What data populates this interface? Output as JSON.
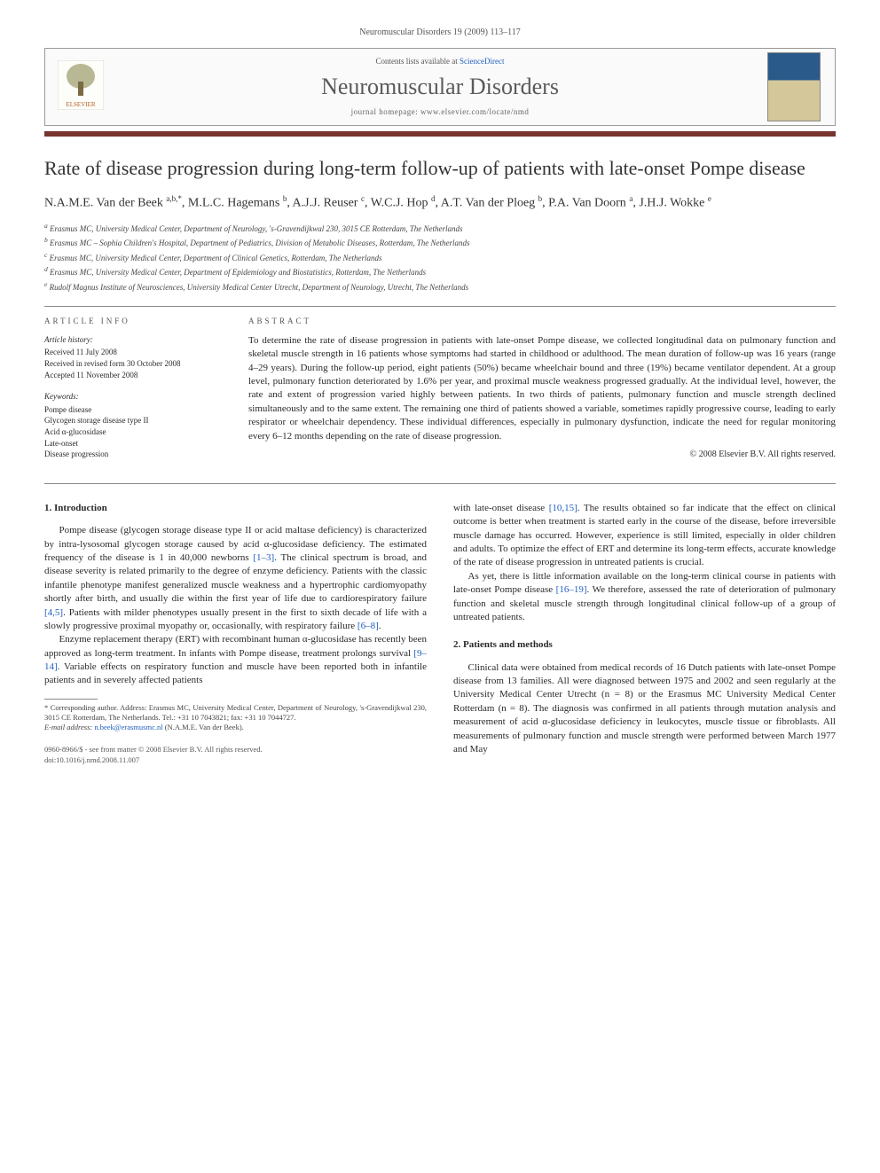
{
  "header_meta": "Neuromuscular Disorders 19 (2009) 113–117",
  "pubinfo": {
    "contents_prefix": "Contents lists available at ",
    "contents_link": "ScienceDirect",
    "journal_name": "Neuromuscular Disorders",
    "homepage_prefix": "journal homepage: ",
    "homepage_url": "www.elsevier.com/locate/nmd",
    "elsevier_label": "ELSEVIER"
  },
  "colors": {
    "title_bar": "#77352e",
    "link": "#2060c0",
    "cover_top": "#2a5a8a",
    "cover_bottom": "#d4c89a"
  },
  "article": {
    "title": "Rate of disease progression during long-term follow-up of patients with late-onset Pompe disease",
    "authors_html": "N.A.M.E. Van der Beek <sup>a,b,*</sup>, M.L.C. Hagemans <sup>b</sup>, A.J.J. Reuser <sup>c</sup>, W.C.J. Hop <sup>d</sup>, A.T. Van der Ploeg <sup>b</sup>, P.A. Van Doorn <sup>a</sup>, J.H.J. Wokke <sup>e</sup>",
    "affiliations": [
      "a Erasmus MC, University Medical Center, Department of Neurology, 's-Gravendijkwal 230, 3015 CE Rotterdam, The Netherlands",
      "b Erasmus MC – Sophia Children's Hospital, Department of Pediatrics, Division of Metabolic Diseases, Rotterdam, The Netherlands",
      "c Erasmus MC, University Medical Center, Department of Clinical Genetics, Rotterdam, The Netherlands",
      "d Erasmus MC, University Medical Center, Department of Epidemiology and Biostatistics, Rotterdam, The Netherlands",
      "e Rudolf Magnus Institute of Neurosciences, University Medical Center Utrecht, Department of Neurology, Utrecht, The Netherlands"
    ]
  },
  "article_info": {
    "heading": "ARTICLE INFO",
    "history_heading": "Article history:",
    "history": [
      "Received 11 July 2008",
      "Received in revised form 30 October 2008",
      "Accepted 11 November 2008"
    ],
    "keywords_heading": "Keywords:",
    "keywords": [
      "Pompe disease",
      "Glycogen storage disease type II",
      "Acid α-glucosidase",
      "Late-onset",
      "Disease progression"
    ]
  },
  "abstract": {
    "heading": "ABSTRACT",
    "text": "To determine the rate of disease progression in patients with late-onset Pompe disease, we collected longitudinal data on pulmonary function and skeletal muscle strength in 16 patients whose symptoms had started in childhood or adulthood. The mean duration of follow-up was 16 years (range 4–29 years). During the follow-up period, eight patients (50%) became wheelchair bound and three (19%) became ventilator dependent. At a group level, pulmonary function deteriorated by 1.6% per year, and proximal muscle weakness progressed gradually. At the individual level, however, the rate and extent of progression varied highly between patients. In two thirds of patients, pulmonary function and muscle strength declined simultaneously and to the same extent. The remaining one third of patients showed a variable, sometimes rapidly progressive course, leading to early respirator or wheelchair dependency. These individual differences, especially in pulmonary dysfunction, indicate the need for regular monitoring every 6–12 months depending on the rate of disease progression.",
    "copyright": "© 2008 Elsevier B.V. All rights reserved."
  },
  "body": {
    "s1_heading": "1. Introduction",
    "s1_p1_pre": "Pompe disease (glycogen storage disease type II or acid maltase deficiency) is characterized by intra-lysosomal glycogen storage caused by acid α-glucosidase deficiency. The estimated frequency of the disease is 1 in 40,000 newborns ",
    "s1_p1_ref1": "[1–3]",
    "s1_p1_mid1": ". The clinical spectrum is broad, and disease severity is related primarily to the degree of enzyme deficiency. Patients with the classic infantile phenotype manifest generalized muscle weakness and a hypertrophic cardiomyopathy shortly after birth, and usually die within the first year of life due to cardiorespiratory failure ",
    "s1_p1_ref2": "[4,5]",
    "s1_p1_mid2": ". Patients with milder phenotypes usually present in the first to sixth decade of life with a slowly progressive proximal myopathy or, occasionally, with respiratory failure ",
    "s1_p1_ref3": "[6–8]",
    "s1_p1_end": ".",
    "s1_p2_pre": "Enzyme replacement therapy (ERT) with recombinant human α-glucosidase has recently been approved as long-term treatment. In infants with Pompe disease, treatment prolongs survival ",
    "s1_p2_ref1": "[9–14]",
    "s1_p2_mid": ". Variable effects on respiratory function and muscle have been reported both in infantile patients and in severely affected patients",
    "s1_p3_pre": "with late-onset disease ",
    "s1_p3_ref1": "[10,15]",
    "s1_p3_rest": ". The results obtained so far indicate that the effect on clinical outcome is better when treatment is started early in the course of the disease, before irreversible muscle damage has occurred. However, experience is still limited, especially in older children and adults. To optimize the effect of ERT and determine its long-term effects, accurate knowledge of the rate of disease progression in untreated patients is crucial.",
    "s1_p4_pre": "As yet, there is little information available on the long-term clinical course in patients with late-onset Pompe disease ",
    "s1_p4_ref1": "[16–19]",
    "s1_p4_rest": ". We therefore, assessed the rate of deterioration of pulmonary function and skeletal muscle strength through longitudinal clinical follow-up of a group of untreated patients.",
    "s2_heading": "2. Patients and methods",
    "s2_p1": "Clinical data were obtained from medical records of 16 Dutch patients with late-onset Pompe disease from 13 families. All were diagnosed between 1975 and 2002 and seen regularly at the University Medical Center Utrecht (n = 8) or the Erasmus MC University Medical Center Rotterdam (n = 8). The diagnosis was confirmed in all patients through mutation analysis and measurement of acid α-glucosidase deficiency in leukocytes, muscle tissue or fibroblasts. All measurements of pulmonary function and muscle strength were performed between March 1977 and May"
  },
  "footnote": {
    "corresponding": "* Corresponding author. Address: Erasmus MC, University Medical Center, Department of Neurology, 's-Gravendijkwal 230, 3015 CE Rotterdam, The Netherlands. Tel.: +31 10 7043821; fax: +31 10 7044727.",
    "email_label": "E-mail address: ",
    "email": "n.beek@erasmusmc.nl",
    "email_suffix": " (N.A.M.E. Van der Beek)."
  },
  "doi": {
    "line1": "0960-8966/$ - see front matter © 2008 Elsevier B.V. All rights reserved.",
    "line2": "doi:10.1016/j.nmd.2008.11.007"
  }
}
